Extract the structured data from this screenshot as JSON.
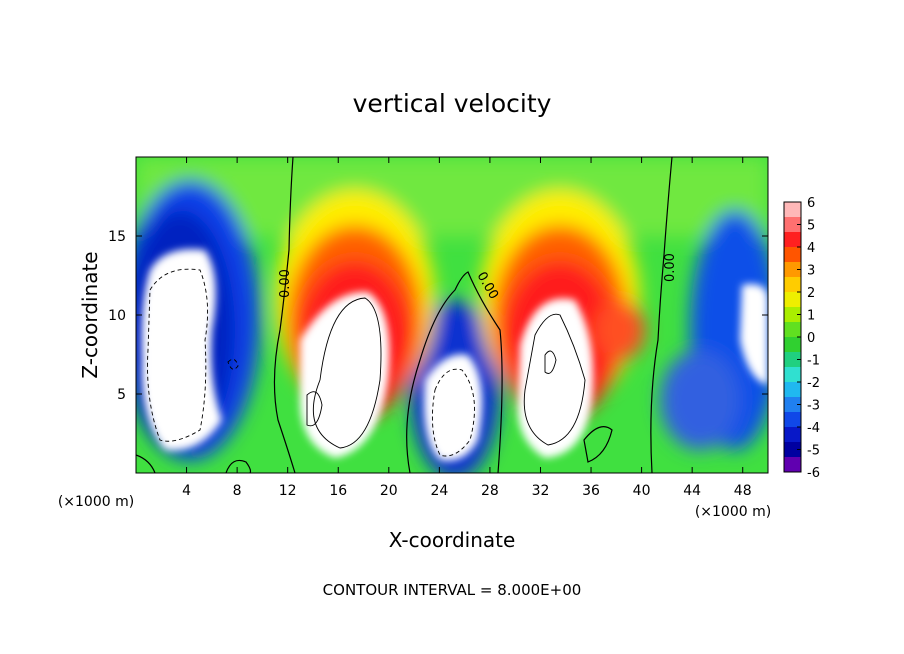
{
  "chart_data": {
    "type": "heatmap",
    "title": "vertical velocity",
    "xlabel": "X-coordinate",
    "ylabel": "Z-coordinate",
    "x_unit_label": "(×1000 m)",
    "z_unit_label": "(×1000 m)",
    "footer": "CONTOUR INTERVAL = 8.000E+00",
    "xlim": [
      0,
      50
    ],
    "ylim": [
      0,
      20
    ],
    "x_ticks": [
      "4",
      "8",
      "12",
      "16",
      "20",
      "24",
      "28",
      "32",
      "36",
      "40",
      "44",
      "48"
    ],
    "y_ticks": [
      "5",
      "10",
      "15"
    ],
    "contour_labels": [
      "0.00",
      "0.00",
      "0.00"
    ],
    "colorbar": {
      "min": -6,
      "max": 6,
      "ticks": [
        "6",
        "5",
        "4",
        "3",
        "2",
        "1",
        "0",
        "-1",
        "-2",
        "-3",
        "-4",
        "-5",
        "-6"
      ]
    },
    "features": [
      {
        "kind": "downdraft",
        "x_center": 4.5,
        "z_center": 9,
        "peak": -8
      },
      {
        "kind": "updraft",
        "x_center": 18,
        "z_center": 7,
        "peak": 9
      },
      {
        "kind": "downdraft",
        "x_center": 25.5,
        "z_center": 5,
        "peak": -8
      },
      {
        "kind": "updraft",
        "x_center": 33,
        "z_center": 7,
        "peak": 9
      },
      {
        "kind": "downdraft",
        "x_center": 48.5,
        "z_center": 9,
        "peak": -7
      }
    ]
  }
}
